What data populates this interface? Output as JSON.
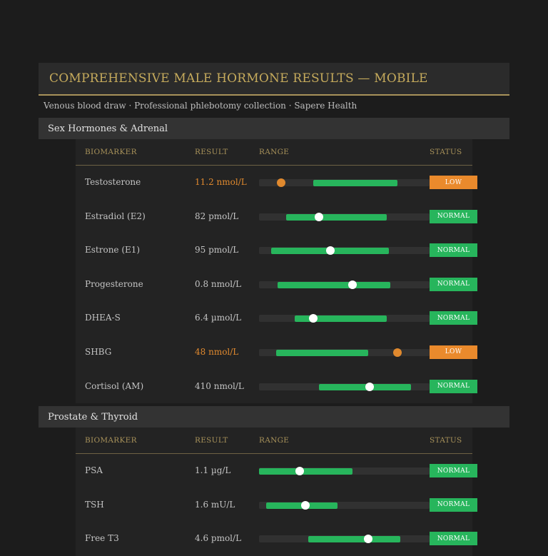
{
  "report": {
    "title": "COMPREHENSIVE MALE HORMONE RESULTS — MOBILE",
    "subtitle": "Venous blood draw · Professional phlebotomy collection · Sapere Health"
  },
  "columns": {
    "biomarker": "BIOMARKER",
    "result": "RESULT",
    "range": "RANGE",
    "status": "STATUS"
  },
  "colors": {
    "normal": "#27b55c",
    "low": "#ea8a2c",
    "accent": "#c6ab5c"
  },
  "sections": [
    {
      "title": "Sex Hormones & Adrenal",
      "rows": [
        {
          "name": "Testosterone",
          "result": "11.2 nmol/L",
          "status": "LOW",
          "range_start": 0.32,
          "range_end": 0.81,
          "value": 0.13
        },
        {
          "name": "Estradiol (E2)",
          "result": "82 pmol/L",
          "status": "NORMAL",
          "range_start": 0.16,
          "range_end": 0.75,
          "value": 0.35
        },
        {
          "name": "Estrone (E1)",
          "result": "95 pmol/L",
          "status": "NORMAL",
          "range_start": 0.07,
          "range_end": 0.76,
          "value": 0.42
        },
        {
          "name": "Progesterone",
          "result": "0.8 nmol/L",
          "status": "NORMAL",
          "range_start": 0.11,
          "range_end": 0.77,
          "value": 0.55
        },
        {
          "name": "DHEA-S",
          "result": "6.4 µmol/L",
          "status": "NORMAL",
          "range_start": 0.21,
          "range_end": 0.75,
          "value": 0.32
        },
        {
          "name": "SHBG",
          "result": "48 nmol/L",
          "status": "LOW",
          "range_start": 0.1,
          "range_end": 0.64,
          "value": 0.81
        },
        {
          "name": "Cortisol (AM)",
          "result": "410 nmol/L",
          "status": "NORMAL",
          "range_start": 0.35,
          "range_end": 0.89,
          "value": 0.65
        }
      ]
    },
    {
      "title": "Prostate & Thyroid",
      "rows": [
        {
          "name": "PSA",
          "result": "1.1 µg/L",
          "status": "NORMAL",
          "range_start": 0.0,
          "range_end": 0.55,
          "value": 0.24
        },
        {
          "name": "TSH",
          "result": "1.6 mU/L",
          "status": "NORMAL",
          "range_start": 0.04,
          "range_end": 0.46,
          "value": 0.27
        },
        {
          "name": "Free T3",
          "result": "4.6 pmol/L",
          "status": "NORMAL",
          "range_start": 0.29,
          "range_end": 0.83,
          "value": 0.64
        }
      ]
    }
  ]
}
